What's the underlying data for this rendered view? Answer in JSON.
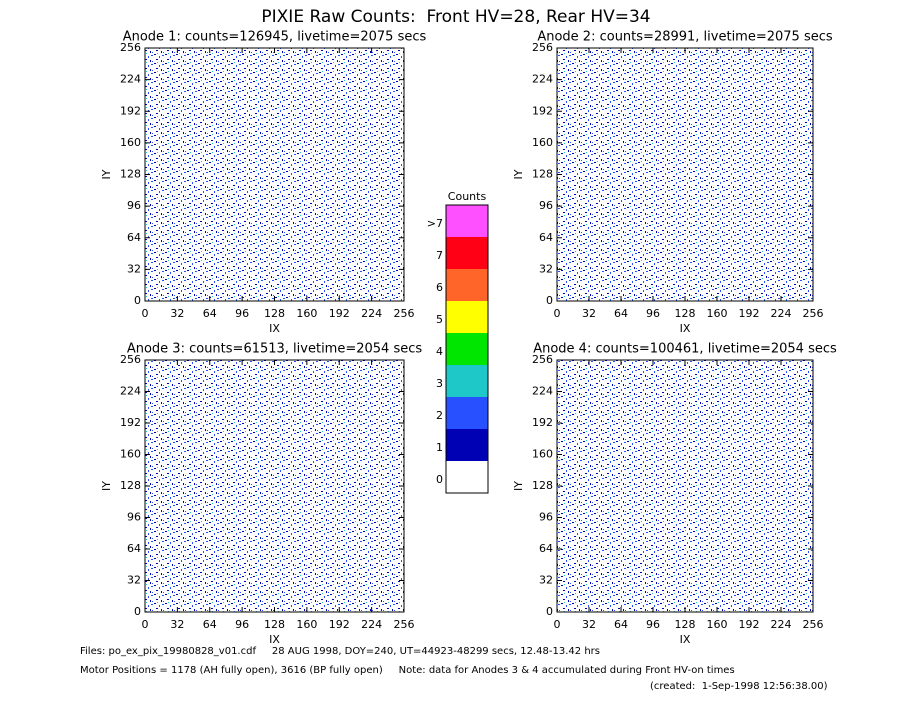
{
  "title": "PIXIE Raw Counts:  Front HV=28, Rear HV=34",
  "chart_data": [
    {
      "type": "heatmap",
      "title": "Anode 1: counts=126945, livetime=2075 secs",
      "xlabel": "IX",
      "ylabel": "IY",
      "xlim": [
        0,
        256
      ],
      "ylim": [
        0,
        256
      ],
      "xticks": [
        0,
        32,
        64,
        96,
        128,
        160,
        192,
        224,
        256
      ],
      "yticks": [
        0,
        32,
        64,
        96,
        128,
        160,
        192,
        224,
        256
      ]
    },
    {
      "type": "heatmap",
      "title": "Anode 2: counts=28991, livetime=2075 secs",
      "xlabel": "IX",
      "ylabel": "IY",
      "xlim": [
        0,
        256
      ],
      "ylim": [
        0,
        256
      ],
      "xticks": [
        0,
        32,
        64,
        96,
        128,
        160,
        192,
        224,
        256
      ],
      "yticks": [
        0,
        32,
        64,
        96,
        128,
        160,
        192,
        224,
        256
      ]
    },
    {
      "type": "heatmap",
      "title": "Anode 3: counts=61513, livetime=2054 secs",
      "xlabel": "IX",
      "ylabel": "IY",
      "xlim": [
        0,
        256
      ],
      "ylim": [
        0,
        256
      ],
      "xticks": [
        0,
        32,
        64,
        96,
        128,
        160,
        192,
        224,
        256
      ],
      "yticks": [
        0,
        32,
        64,
        96,
        128,
        160,
        192,
        224,
        256
      ]
    },
    {
      "type": "heatmap",
      "title": "Anode 4: counts=100461, livetime=2054 secs",
      "xlabel": "IX",
      "ylabel": "IY",
      "xlim": [
        0,
        256
      ],
      "ylim": [
        0,
        256
      ],
      "xticks": [
        0,
        32,
        64,
        96,
        128,
        160,
        192,
        224,
        256
      ],
      "yticks": [
        0,
        32,
        64,
        96,
        128,
        160,
        192,
        224,
        256
      ]
    }
  ],
  "colorbar": {
    "title": "Counts",
    "labels": [
      "0",
      "1",
      "2",
      "3",
      "4",
      "5",
      "6",
      "7",
      ">7"
    ],
    "colors": [
      "#ffffff",
      "#0000b4",
      "#2850ff",
      "#1ec8c8",
      "#00e600",
      "#ffff00",
      "#ff6428",
      "#ff0014",
      "#ff50ff"
    ]
  },
  "footer": [
    "Files: po_ex_pix_19980828_v01.cdf     28 AUG 1998, DOY=240, UT=44923-48299 secs, 12.48-13.42 hrs",
    "Motor Positions = 1178 (AH fully open), 3616 (BP fully open)     Note: data for Anodes 3 & 4 accumulated during Front HV-on times",
    "(created:  1-Sep-1998 12:56:38.00)"
  ]
}
